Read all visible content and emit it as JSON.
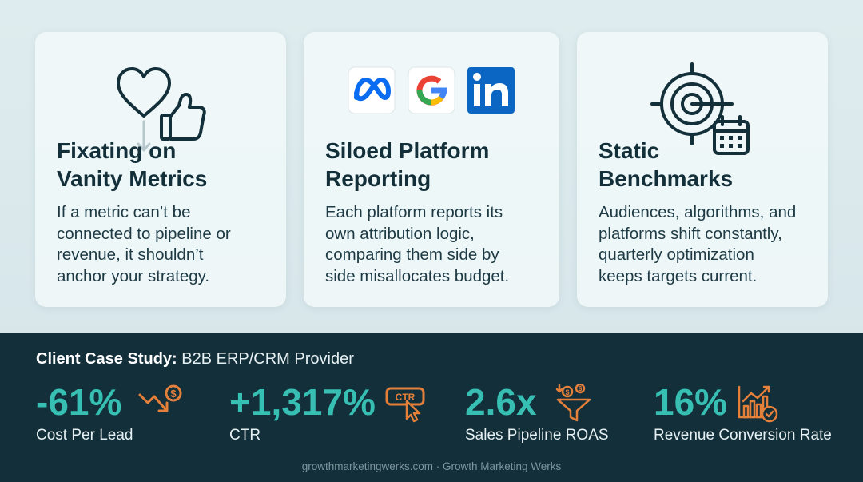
{
  "cards": [
    {
      "icon": "heart-thumbs-up-icon",
      "title": "Fixating on Vanity Metrics",
      "title_line1": "Fixating on",
      "title_line2": "Vanity Metrics",
      "body_lines": [
        "If a metric can’t be",
        "connected to pipeline or",
        "revenue, it shouldn’t",
        "anchor your strategy."
      ]
    },
    {
      "icons": [
        "meta-logo-icon",
        "google-logo-icon",
        "linkedin-logo-icon"
      ],
      "title_line1": "Siloed Platform",
      "title_line2": "Reporting",
      "body_lines": [
        "Each platform reports its",
        "own attribution logic,",
        "comparing them side by",
        "side misallocates budget."
      ]
    },
    {
      "icon": "target-calendar-icon",
      "title_line1": "Static",
      "title_line2": "Benchmarks",
      "body_lines": [
        "Audiences, algorithms, and",
        "platforms shift constantly,",
        "quarterly optimization",
        "keeps targets current."
      ]
    }
  ],
  "case_study": {
    "title_bold": "Client Case Study:",
    "title_rest": " B2B ERP/CRM Provider",
    "metrics": [
      {
        "value": "-61%",
        "label": "Cost Per Lead",
        "icon": "cost-down-icon"
      },
      {
        "value": "+1,317%",
        "label": "CTR",
        "icon": "ctr-click-icon",
        "icon_text": "CTR"
      },
      {
        "value": "2.6x",
        "label": "Sales Pipeline ROAS",
        "icon": "funnel-dollar-icon"
      },
      {
        "value": "16%",
        "label": "Revenue Conversion Rate",
        "icon": "bar-chart-check-icon"
      }
    ]
  },
  "footer": "growthmarketingwerks.com · Growth Marketing Werks",
  "colors": {
    "accent_teal": "#36bfb2",
    "accent_orange": "#e4803a",
    "dark_panel": "#132f3a",
    "card_bg": "#f0f7f9",
    "meta_blue": "#0a6cf0",
    "linkedin_blue": "#0a66c2"
  }
}
